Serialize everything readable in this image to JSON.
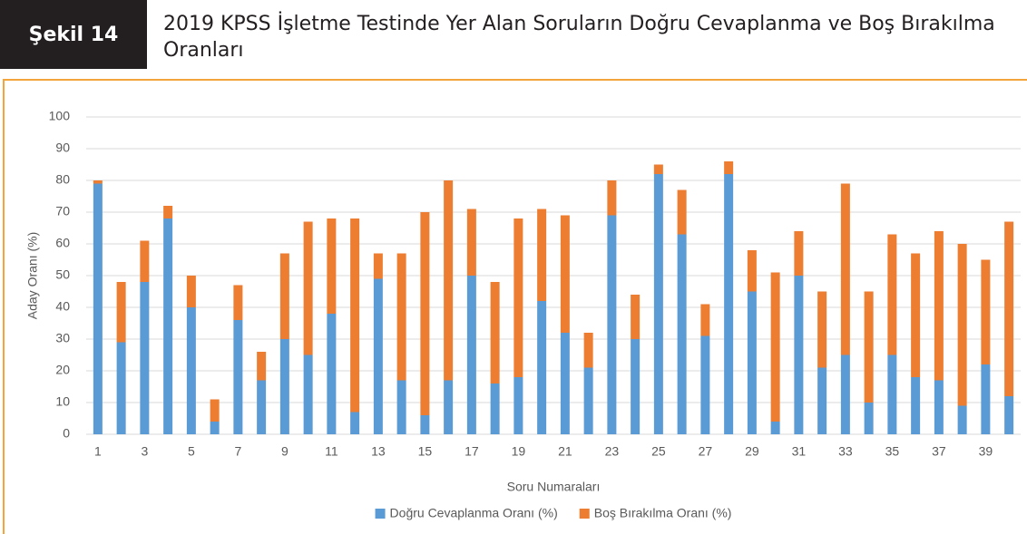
{
  "chart_data": {
    "type": "stacked_bar",
    "figure_label": "Şekil 14",
    "title": "2019 KPSS İşletme Testinde Yer Alan Soruların Doğru Cevaplanma ve Boş Bırakılma Oranları",
    "x_label": "Soru Numaraları",
    "y_label": "Aday Oranı (%)",
    "categories": [
      "1",
      null,
      "3",
      null,
      "5",
      null,
      "7",
      null,
      "9",
      null,
      "11",
      null,
      "13",
      null,
      "15",
      null,
      "17",
      null,
      "19",
      null,
      "21",
      null,
      "23",
      null,
      "25",
      null,
      "27",
      null,
      "29",
      null,
      "31",
      null,
      "33",
      null,
      "35",
      null,
      "37",
      null,
      "39",
      null
    ],
    "series": [
      {
        "name": "Doğru Cevaplanma Oranı (%)",
        "color": "#5b9bd5",
        "values": [
          79,
          29,
          48,
          68,
          40,
          4,
          36,
          17,
          30,
          25,
          38,
          7,
          49,
          17,
          6,
          17,
          50,
          16,
          18,
          42,
          32,
          21,
          69,
          30,
          82,
          63,
          31,
          82,
          45,
          4,
          50,
          21,
          25,
          10,
          25,
          18,
          17,
          9,
          22,
          12
        ]
      },
      {
        "name": "Boş Bırakılma Oranı (%)",
        "color": "#ed7d31",
        "values": [
          1,
          19,
          13,
          4,
          10,
          7,
          11,
          9,
          27,
          42,
          30,
          61,
          8,
          40,
          64,
          63,
          21,
          32,
          50,
          29,
          37,
          11,
          11,
          14,
          3,
          14,
          10,
          4,
          13,
          47,
          14,
          24,
          54,
          35,
          38,
          39,
          47,
          51,
          33,
          55
        ]
      }
    ],
    "ylim": [
      0,
      100
    ],
    "yticks": [
      0,
      10,
      20,
      30,
      40,
      50,
      60,
      70,
      80,
      90,
      100
    ],
    "grid": true,
    "legend": "bottom"
  }
}
